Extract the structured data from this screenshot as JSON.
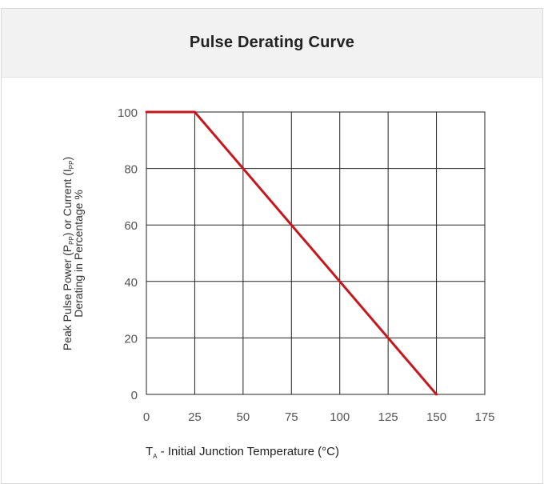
{
  "title": "Pulse Derating Curve",
  "chart_data": {
    "type": "line",
    "title": "Pulse Derating Curve",
    "xlabel": {
      "symbol": "T",
      "subscript": "A",
      "text": " - Initial Junction Temperature (°C)"
    },
    "ylabel": {
      "line1": {
        "a": "Peak Pulse Power (P",
        "sub1": "PP",
        "b": ") or Current (I",
        "sub2": "PP",
        "c": ")"
      },
      "line2": "Derating in Percentage %"
    },
    "xlim": [
      0,
      175
    ],
    "ylim": [
      0,
      100
    ],
    "xticks": [
      "0",
      "25",
      "50",
      "75",
      "100",
      "125",
      "150",
      "175"
    ],
    "yticks": [
      "0",
      "20",
      "40",
      "60",
      "80",
      "100"
    ],
    "grid": true,
    "series": [
      {
        "color": "#c8161d",
        "x": [
          0,
          25,
          150
        ],
        "y": [
          100,
          100,
          0
        ]
      }
    ]
  }
}
